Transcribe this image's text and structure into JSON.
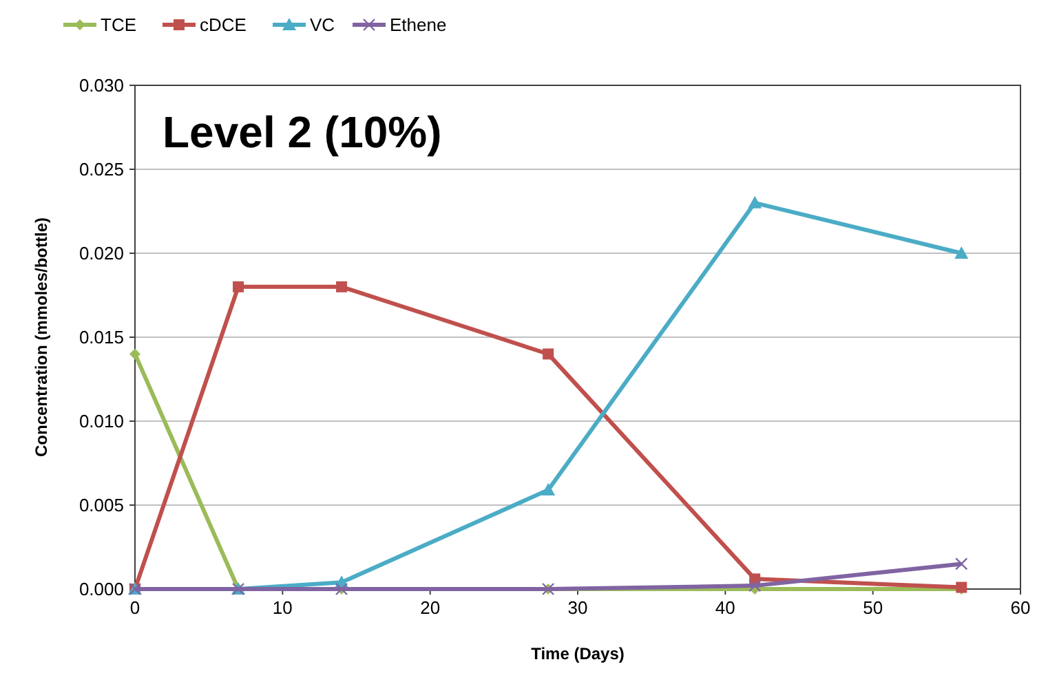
{
  "chart_data": {
    "type": "line",
    "title": "Level 2 (10%)",
    "xlabel": "Time (Days)",
    "ylabel": "Concentration (mmoles/bottle)",
    "x": [
      0,
      7,
      14,
      28,
      42,
      56
    ],
    "series": [
      {
        "name": "TCE",
        "color": "#9bbb59",
        "marker": "diamond",
        "values": [
          0.014,
          0,
          0,
          0,
          0,
          0
        ]
      },
      {
        "name": "cDCE",
        "color": "#c0504d",
        "marker": "square",
        "values": [
          0,
          0.018,
          0.018,
          0.014,
          0.0006,
          0.0001
        ]
      },
      {
        "name": "VC",
        "color": "#4bacc6",
        "marker": "triangle",
        "values": [
          0,
          0,
          0.0004,
          0.0059,
          0.023,
          0.02
        ]
      },
      {
        "name": "Ethene",
        "color": "#8064a2",
        "marker": "cross",
        "values": [
          0,
          0,
          0,
          0,
          0.0002,
          0.0015
        ]
      }
    ],
    "xlim": [
      0,
      60
    ],
    "xticks": [
      0,
      10,
      20,
      30,
      40,
      50,
      60
    ],
    "ylim": [
      0,
      0.03
    ],
    "yticks": [
      {
        "value": 0,
        "label": "0.000"
      },
      {
        "value": 0.005,
        "label": "0.005"
      },
      {
        "value": 0.01,
        "label": "0.010"
      },
      {
        "value": 0.015,
        "label": "0.015"
      },
      {
        "value": 0.02,
        "label": "0.020"
      },
      {
        "value": 0.025,
        "label": "0.025"
      },
      {
        "value": 0.03,
        "label": "0.030"
      }
    ],
    "grid": "y",
    "legend": "top left"
  }
}
